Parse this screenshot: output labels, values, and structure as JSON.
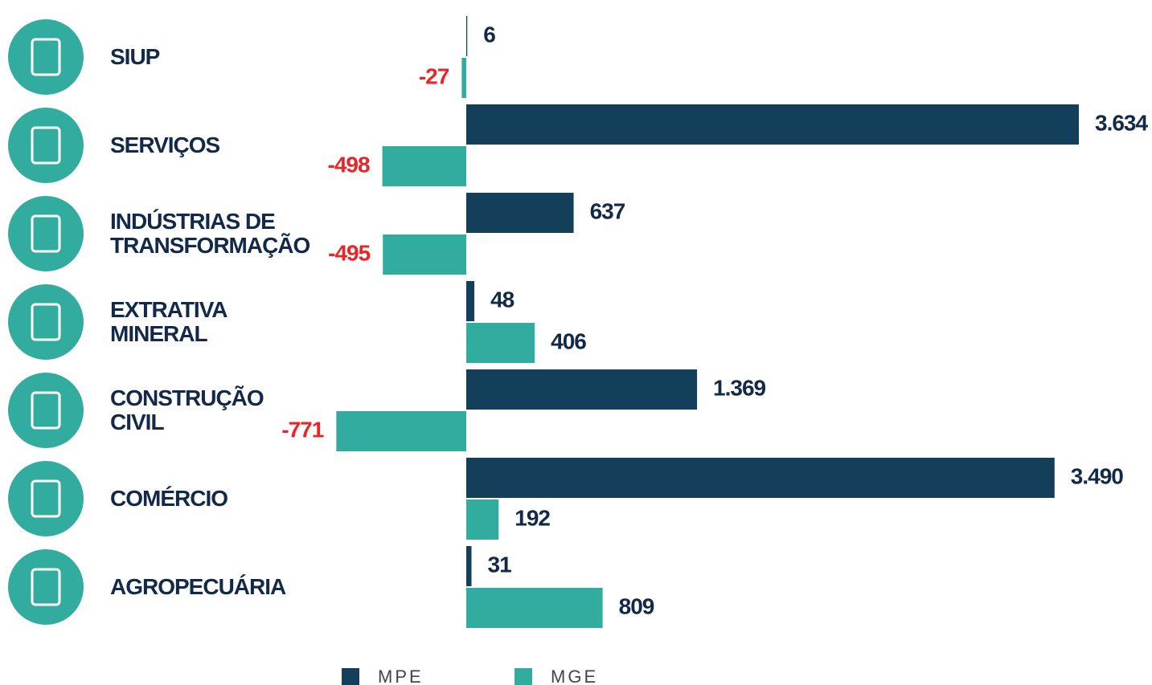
{
  "chart_data": {
    "type": "bar",
    "categories": [
      "SIUP",
      "SERVIÇOS",
      "INDÚSTRIAS DE\nTRANSFORMAÇÃO",
      "EXTRATIVA\nMINERAL",
      "CONSTRUÇÃO\nCIVIL",
      "COMÉRCIO",
      "AGROPECUÁRIA"
    ],
    "series": [
      {
        "name": "MPE",
        "color": "#143f5a",
        "values": [
          6,
          3634,
          637,
          48,
          1369,
          3490,
          31
        ],
        "value_labels": [
          "6",
          "3.634",
          "637",
          "48",
          "1.369",
          "3.490",
          "31"
        ]
      },
      {
        "name": "MGE",
        "color": "#33aca0",
        "values": [
          -27,
          -498,
          -495,
          406,
          -771,
          192,
          809
        ]
      }
    ],
    "negative_label_color": "#e8262a",
    "label_color": "#12294a"
  }
}
